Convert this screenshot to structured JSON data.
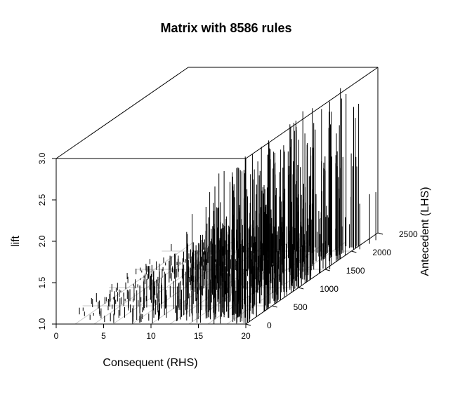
{
  "chart_data": {
    "type": "bar",
    "projection": "3d-perspective",
    "title": "Matrix with 8586 rules",
    "xlabel": "Consequent (RHS)",
    "ylabel": "Antecedent (LHS)",
    "zlabel": "lift",
    "xlim": [
      0,
      20
    ],
    "ylim": [
      0,
      2500
    ],
    "zlim": [
      1.0,
      3.0
    ],
    "x_ticks": [
      0,
      5,
      10,
      15,
      20
    ],
    "y_ticks": [
      0,
      500,
      1000,
      1500,
      2000,
      2500
    ],
    "z_ticks": [
      1.0,
      1.5,
      2.0,
      2.5,
      3.0
    ],
    "x_tick_labels": [
      "0",
      "5",
      "10",
      "15",
      "20"
    ],
    "y_tick_labels": [
      "0",
      "500",
      "1000",
      "1500",
      "2000",
      "2500"
    ],
    "z_tick_labels": [
      "1.0",
      "1.5",
      "2.0",
      "2.5",
      "3.0"
    ],
    "series_color": "#000000",
    "grid_color": "#c8c8c8",
    "bars": [
      {
        "x": 1,
        "lhs_from": 40,
        "lhs_to": 2060,
        "lift_min": 1.02,
        "lift_max": 1.12
      },
      {
        "x": 2,
        "lhs_from": 40,
        "lhs_to": 2080,
        "lift_min": 1.02,
        "lift_max": 1.14
      },
      {
        "x": 3,
        "lhs_from": 30,
        "lhs_to": 2080,
        "lift_min": 1.03,
        "lift_max": 1.17
      },
      {
        "x": 4,
        "lhs_from": 30,
        "lhs_to": 2100,
        "lift_min": 1.03,
        "lift_max": 1.22
      },
      {
        "x": 5,
        "lhs_from": 20,
        "lhs_to": 2100,
        "lift_min": 1.04,
        "lift_max": 1.28
      },
      {
        "x": 6,
        "lhs_from": 20,
        "lhs_to": 2120,
        "lift_min": 1.05,
        "lift_max": 1.33
      },
      {
        "x": 7,
        "lhs_from": 10,
        "lhs_to": 2120,
        "lift_min": 1.05,
        "lift_max": 1.38
      },
      {
        "x": 8,
        "lhs_from": 10,
        "lhs_to": 2140,
        "lift_min": 1.06,
        "lift_max": 1.45
      },
      {
        "x": 9,
        "lhs_from": 10,
        "lhs_to": 2150,
        "lift_min": 1.07,
        "lift_max": 1.52
      },
      {
        "x": 10,
        "lhs_from": 0,
        "lhs_to": 2150,
        "lift_min": 1.08,
        "lift_max": 1.6
      },
      {
        "x": 11,
        "lhs_from": 0,
        "lhs_to": 2170,
        "lift_min": 1.1,
        "lift_max": 1.8
      },
      {
        "x": 12,
        "lhs_from": 0,
        "lhs_to": 2170,
        "lift_min": 1.12,
        "lift_max": 2.0
      },
      {
        "x": 13,
        "lhs_from": 0,
        "lhs_to": 2180,
        "lift_min": 1.15,
        "lift_max": 2.25
      },
      {
        "x": 14,
        "lhs_from": 0,
        "lhs_to": 2180,
        "lift_min": 1.18,
        "lift_max": 2.5
      },
      {
        "x": 15,
        "lhs_from": 0,
        "lhs_to": 2190,
        "lift_min": 1.2,
        "lift_max": 2.7
      },
      {
        "x": 16,
        "lhs_from": 0,
        "lhs_to": 2190,
        "lift_min": 1.22,
        "lift_max": 2.75
      },
      {
        "x": 17,
        "lhs_from": 0,
        "lhs_to": 2190,
        "lift_min": 1.25,
        "lift_max": 2.85
      },
      {
        "x": 18,
        "lhs_from": 0,
        "lhs_to": 2200,
        "lift_min": 1.25,
        "lift_max": 2.95
      },
      {
        "x": 19,
        "lhs_from": 0,
        "lhs_to": 2200,
        "lift_min": 1.28,
        "lift_max": 2.95
      },
      {
        "x": 20,
        "lhs_from": 0,
        "lhs_to": 2200,
        "lift_min": 1.3,
        "lift_max": 2.9
      }
    ],
    "extra_bars": [
      {
        "x": 20.5,
        "lhs": 1500,
        "lift": 1.6
      },
      {
        "x": 20.6,
        "lhs": 2050,
        "lift": 1.55
      },
      {
        "x": 20.8,
        "lhs": 2200,
        "lift": 1.6
      },
      {
        "x": 20.9,
        "lhs": 2300,
        "lift": 1.58
      }
    ]
  }
}
